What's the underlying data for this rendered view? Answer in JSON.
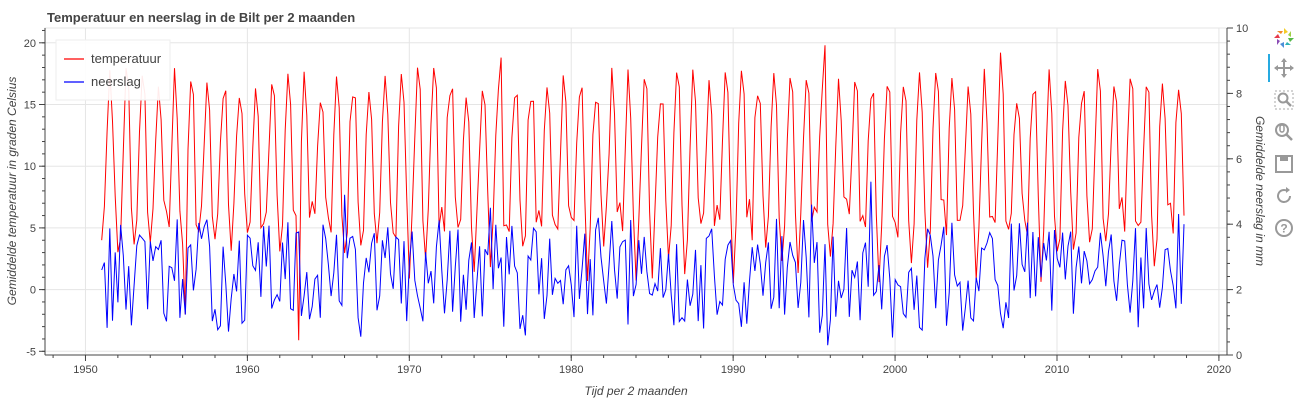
{
  "colors": {
    "temperature": "#ff0000",
    "precipitation": "#0000ff",
    "axis": "#444444",
    "grid": "#e5e5e5",
    "tool_active": "#26aae1",
    "tool_icon": "#999999"
  },
  "toolbar": {
    "tools": [
      {
        "name": "bokeh-logo-icon",
        "active": false,
        "interactable": true
      },
      {
        "name": "pan-icon",
        "active": true,
        "interactable": true
      },
      {
        "name": "box-zoom-icon",
        "active": false,
        "interactable": true
      },
      {
        "name": "wheel-zoom-icon",
        "active": false,
        "interactable": true
      },
      {
        "name": "save-icon",
        "active": false,
        "interactable": true
      },
      {
        "name": "reset-icon",
        "active": false,
        "interactable": true
      },
      {
        "name": "help-icon",
        "active": false,
        "interactable": true
      }
    ]
  },
  "chart_data": {
    "type": "line",
    "title": "Temperatuur en neerslag in de Bilt per 2 maanden",
    "xlabel": "Tijd per 2 maanden",
    "ylabel": "Gemiddelde temperatuur in graden Celsius",
    "y2label": "Gemiddelde neerslag in mm",
    "xlim": [
      1947.5,
      2020.5
    ],
    "ylim": [
      -5.3,
      21.2
    ],
    "y2lim": [
      0,
      10
    ],
    "xticks": [
      1950,
      1960,
      1970,
      1980,
      1990,
      2000,
      2010,
      2020
    ],
    "yticks": [
      -5,
      0,
      5,
      10,
      15,
      20
    ],
    "y2ticks": [
      0,
      2,
      4,
      6,
      8,
      10
    ],
    "grid": true,
    "legend": {
      "position": "top-left",
      "entries": [
        "temperatuur",
        "neerslag"
      ]
    },
    "series": [
      {
        "name": "temperatuur",
        "axis": "left",
        "x_start": 1951.0,
        "x_step": 0.1667,
        "x_end": 2017.8,
        "annual_pattern_bimonthly": [
          4.0,
          5.5,
          12.5,
          16.5,
          15.0,
          6.5
        ],
        "notable_points": [
          {
            "x": 1951.0,
            "y": 4.0
          },
          {
            "x": 1956.1,
            "y": -2.0
          },
          {
            "x": 1963.1,
            "y": -4.1
          },
          {
            "x": 1975.6,
            "y": 18.8
          },
          {
            "x": 1995.6,
            "y": 19.8
          },
          {
            "x": 2006.5,
            "y": 19.2
          },
          {
            "x": 2017.8,
            "y": 6.0
          }
        ]
      },
      {
        "name": "neerslag",
        "axis": "right",
        "x_start": 1951.0,
        "x_step": 0.1667,
        "x_end": 2017.8,
        "typical_range": [
          0.8,
          4.0
        ],
        "notable_points": [
          {
            "x": 1951.0,
            "y": 2.6
          },
          {
            "x": 1966.0,
            "y": 4.9
          },
          {
            "x": 1975.0,
            "y": 4.5
          },
          {
            "x": 1994.9,
            "y": 4.6
          },
          {
            "x": 1995.8,
            "y": 0.3
          },
          {
            "x": 1998.5,
            "y": 5.3
          },
          {
            "x": 2017.8,
            "y": 4.0
          }
        ]
      }
    ]
  }
}
